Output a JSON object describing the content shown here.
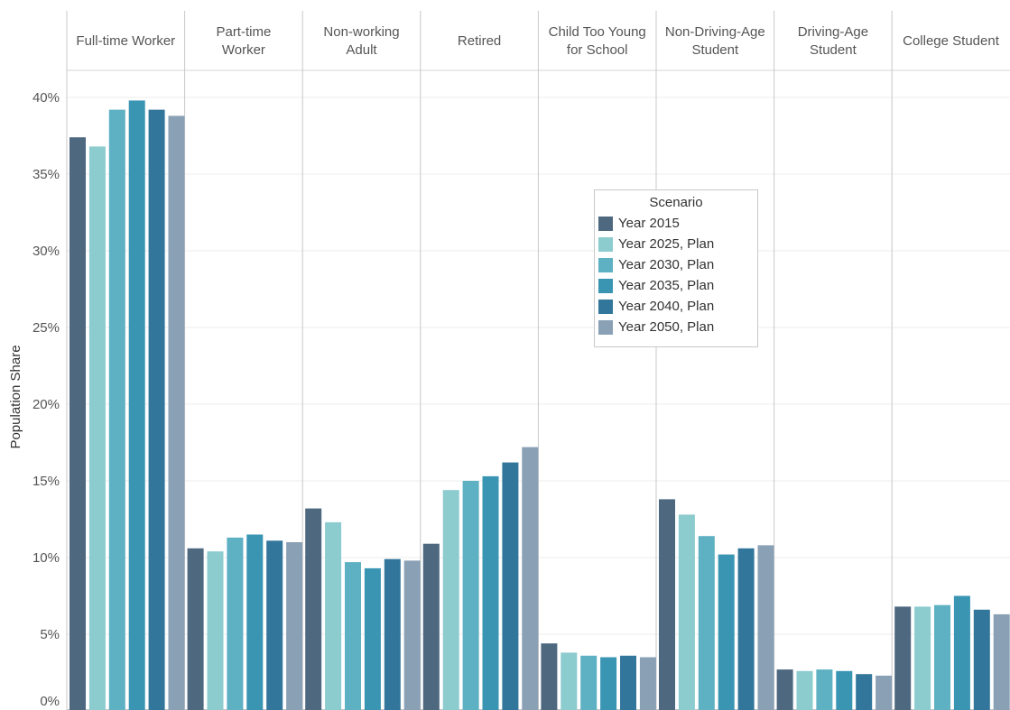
{
  "chart_data": {
    "type": "bar",
    "ylabel": "Population Share",
    "ylim": [
      0,
      41.5
    ],
    "yticks": [
      0,
      5,
      10,
      15,
      20,
      25,
      30,
      35,
      40
    ],
    "ytick_labels": [
      "0%",
      "5%",
      "10%",
      "15%",
      "20%",
      "25%",
      "30%",
      "35%",
      "40%"
    ],
    "grid": true,
    "legend": {
      "title": "Scenario",
      "placement": "center"
    },
    "categories": [
      [
        "Full-time Worker"
      ],
      [
        "Part-time",
        "Worker"
      ],
      [
        "Non-working",
        "Adult"
      ],
      [
        "Retired"
      ],
      [
        "Child Too Young",
        "for School"
      ],
      [
        "Non-Driving-Age",
        "Student"
      ],
      [
        "Driving-Age",
        "Student"
      ],
      [
        "College Student"
      ]
    ],
    "series": [
      {
        "name": "Year 2015",
        "color": "#4e6880",
        "values": [
          37.4,
          10.6,
          13.2,
          10.9,
          4.4,
          13.8,
          2.7,
          6.8
        ]
      },
      {
        "name": "Year 2025, Plan",
        "color": "#8ccbce",
        "values": [
          36.8,
          10.4,
          12.3,
          14.4,
          3.8,
          12.8,
          2.6,
          6.8
        ]
      },
      {
        "name": "Year 2030, Plan",
        "color": "#5eb0c3",
        "values": [
          39.2,
          11.3,
          9.7,
          15.0,
          3.6,
          11.4,
          2.7,
          6.9
        ]
      },
      {
        "name": "Year 2035, Plan",
        "color": "#3a95b3",
        "values": [
          39.8,
          11.5,
          9.3,
          15.3,
          3.5,
          10.2,
          2.6,
          7.5
        ]
      },
      {
        "name": "Year 2040, Plan",
        "color": "#33769b",
        "values": [
          39.2,
          11.1,
          9.9,
          16.2,
          3.6,
          10.6,
          2.4,
          6.6
        ]
      },
      {
        "name": "Year 2050, Plan",
        "color": "#8aa0b5",
        "values": [
          38.8,
          11.0,
          9.8,
          17.2,
          3.5,
          10.8,
          2.3,
          6.3
        ]
      }
    ]
  }
}
